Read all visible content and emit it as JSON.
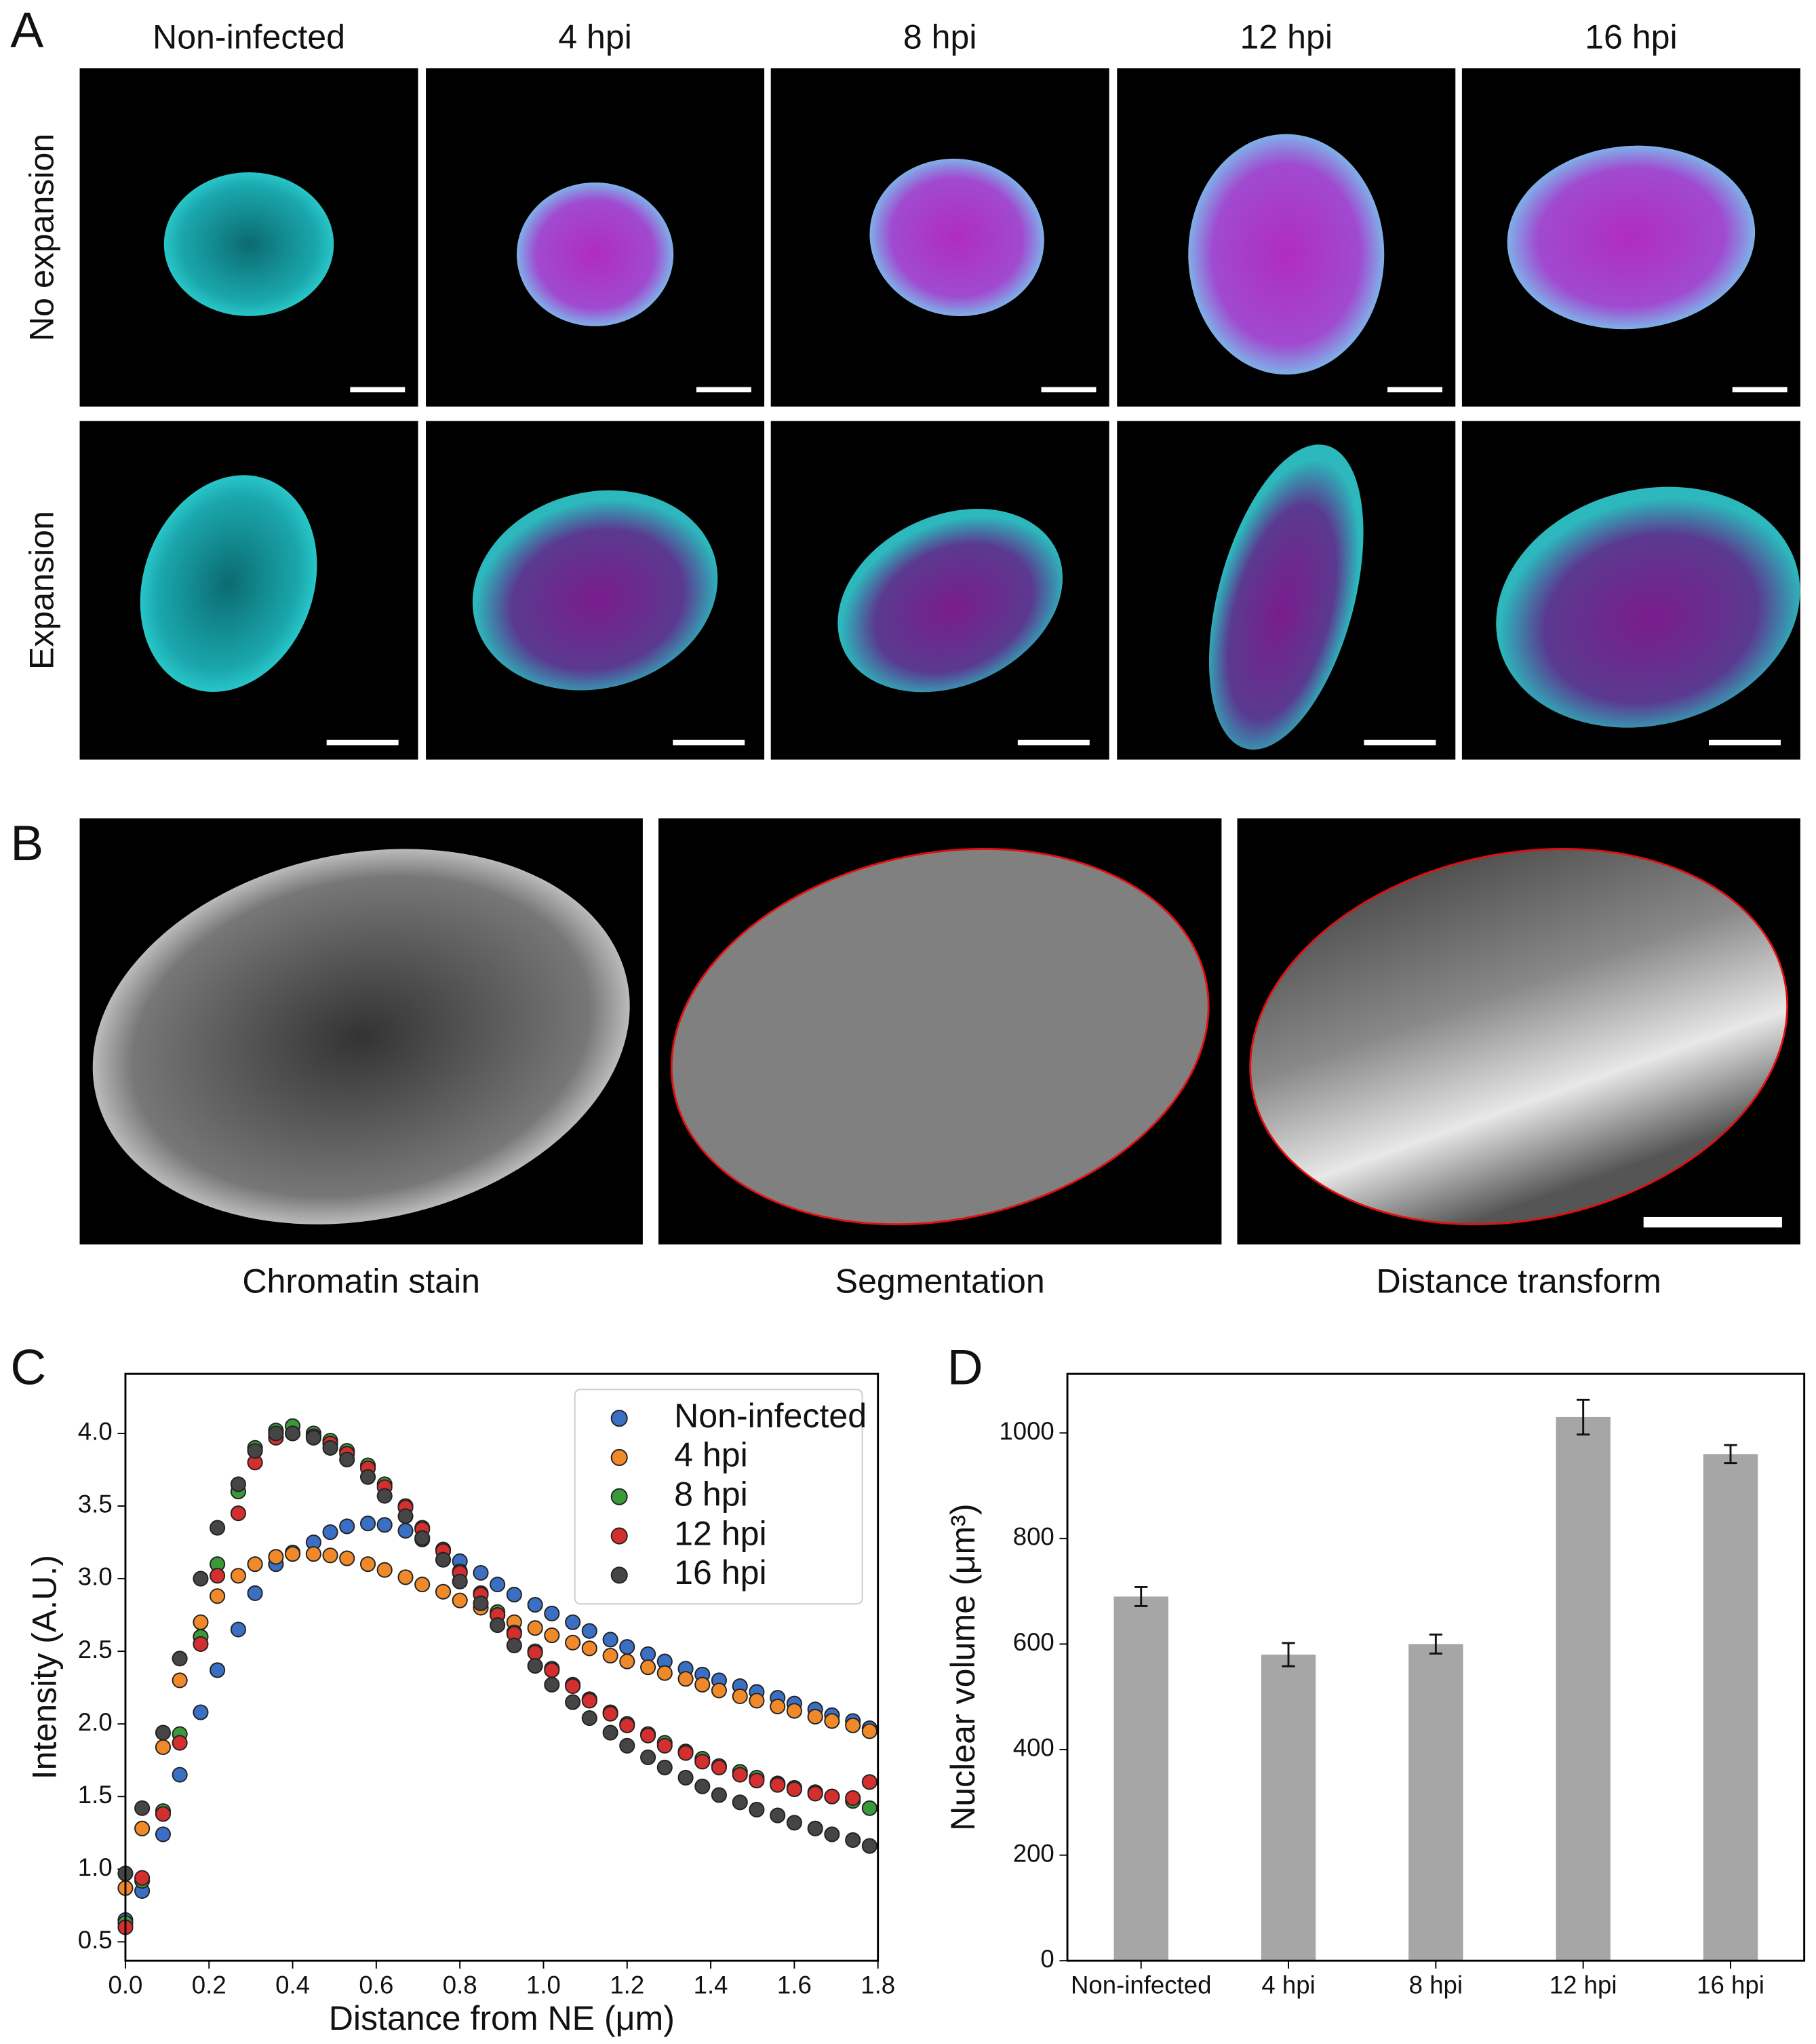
{
  "panel_a": {
    "label": "A",
    "columns": [
      "Non-infected",
      "4 hpi",
      "8 hpi",
      "12 hpi",
      "16 hpi"
    ],
    "rows": [
      "No expansion",
      "Expansion"
    ]
  },
  "panel_b": {
    "label": "B",
    "captions": [
      "Chromatin stain",
      "Segmentation",
      "Distance transform"
    ]
  },
  "chart_data": [
    {
      "type": "scatter",
      "panel_label": "C",
      "xlabel": "Distance from NE (μm)",
      "ylabel": "Intensity (A.U.)",
      "x": [
        0,
        0.04,
        0.09,
        0.13,
        0.18,
        0.22,
        0.27,
        0.31,
        0.36,
        0.4,
        0.45,
        0.49,
        0.53,
        0.58,
        0.62,
        0.67,
        0.71,
        0.76,
        0.8,
        0.85,
        0.89,
        0.93,
        0.98,
        1.02,
        1.07,
        1.11,
        1.16,
        1.2,
        1.25,
        1.29,
        1.34,
        1.38,
        1.42,
        1.47,
        1.51,
        1.56,
        1.6,
        1.65,
        1.69,
        1.74,
        1.78
      ],
      "series": [
        {
          "name": "Non-infected",
          "color": "#3a6fc4",
          "values": [
            0.65,
            0.85,
            1.24,
            1.65,
            2.08,
            2.37,
            2.65,
            2.9,
            3.1,
            3.18,
            3.25,
            3.32,
            3.36,
            3.38,
            3.37,
            3.33,
            3.27,
            3.2,
            3.12,
            3.04,
            2.96,
            2.89,
            2.82,
            2.76,
            2.7,
            2.64,
            2.58,
            2.53,
            2.48,
            2.43,
            2.38,
            2.34,
            2.3,
            2.26,
            2.22,
            2.18,
            2.14,
            2.1,
            2.06,
            2.02,
            1.97
          ]
        },
        {
          "name": "4 hpi",
          "color": "#f0892a",
          "values": [
            0.87,
            1.28,
            1.84,
            2.3,
            2.7,
            2.88,
            3.02,
            3.1,
            3.15,
            3.17,
            3.17,
            3.16,
            3.14,
            3.1,
            3.06,
            3.01,
            2.96,
            2.91,
            2.85,
            2.8,
            2.75,
            2.7,
            2.66,
            2.61,
            2.56,
            2.52,
            2.47,
            2.43,
            2.39,
            2.35,
            2.31,
            2.27,
            2.23,
            2.19,
            2.16,
            2.12,
            2.09,
            2.05,
            2.02,
            1.99,
            1.95
          ]
        },
        {
          "name": "8 hpi",
          "color": "#3a9a3a",
          "values": [
            0.63,
            0.92,
            1.4,
            1.93,
            2.6,
            3.1,
            3.6,
            3.9,
            4.02,
            4.05,
            4.0,
            3.95,
            3.88,
            3.78,
            3.65,
            3.5,
            3.35,
            3.2,
            3.05,
            2.9,
            2.77,
            2.63,
            2.5,
            2.38,
            2.27,
            2.17,
            2.08,
            2.0,
            1.93,
            1.87,
            1.81,
            1.76,
            1.71,
            1.67,
            1.63,
            1.59,
            1.56,
            1.53,
            1.5,
            1.47,
            1.42
          ]
        },
        {
          "name": "12 hpi",
          "color": "#d32f2f",
          "values": [
            0.6,
            0.94,
            1.38,
            1.87,
            2.55,
            3.02,
            3.45,
            3.8,
            3.97,
            4.0,
            3.98,
            3.93,
            3.86,
            3.76,
            3.63,
            3.49,
            3.34,
            3.19,
            3.04,
            2.89,
            2.75,
            2.62,
            2.49,
            2.37,
            2.26,
            2.16,
            2.07,
            1.99,
            1.92,
            1.85,
            1.8,
            1.74,
            1.7,
            1.65,
            1.61,
            1.58,
            1.55,
            1.52,
            1.5,
            1.49,
            1.6
          ]
        },
        {
          "name": "16 hpi",
          "color": "#454545",
          "values": [
            0.97,
            1.42,
            1.94,
            2.45,
            3.0,
            3.35,
            3.65,
            3.88,
            4.0,
            4.0,
            3.97,
            3.9,
            3.82,
            3.7,
            3.57,
            3.43,
            3.28,
            3.13,
            2.98,
            2.83,
            2.68,
            2.54,
            2.4,
            2.27,
            2.15,
            2.04,
            1.94,
            1.85,
            1.77,
            1.7,
            1.63,
            1.57,
            1.51,
            1.46,
            1.41,
            1.37,
            1.32,
            1.28,
            1.24,
            1.2,
            1.16
          ]
        }
      ],
      "xlim": [
        0,
        1.8
      ],
      "ylim": [
        0.37,
        4.41
      ],
      "xticks": [
        {
          "value": 0,
          "label": "0.0"
        },
        0.2,
        0.4,
        0.6,
        0.8,
        {
          "value": 1,
          "label": "1.0"
        },
        1.2,
        1.4,
        1.6,
        1.8
      ],
      "yticks": [
        0.5,
        {
          "value": 1,
          "label": "1.0"
        },
        1.5,
        {
          "value": 2,
          "label": "2.0"
        },
        2.5,
        {
          "value": 3,
          "label": "3.0"
        },
        3.5,
        {
          "value": 4,
          "label": "4.0"
        }
      ],
      "legend": "upper right"
    },
    {
      "type": "bar",
      "panel_label": "D",
      "ylabel": "Nuclear volume (μm³)",
      "categories": [
        "Non-infected",
        "4 hpi",
        "8 hpi",
        "12 hpi",
        "16 hpi"
      ],
      "values": [
        690,
        580,
        600,
        1030,
        960
      ],
      "errors": [
        18,
        22,
        18,
        33,
        17
      ],
      "color": "#a6a6a6",
      "ylim": [
        0,
        1112
      ],
      "yticks": [
        0,
        200,
        400,
        600,
        800,
        1000
      ]
    }
  ]
}
